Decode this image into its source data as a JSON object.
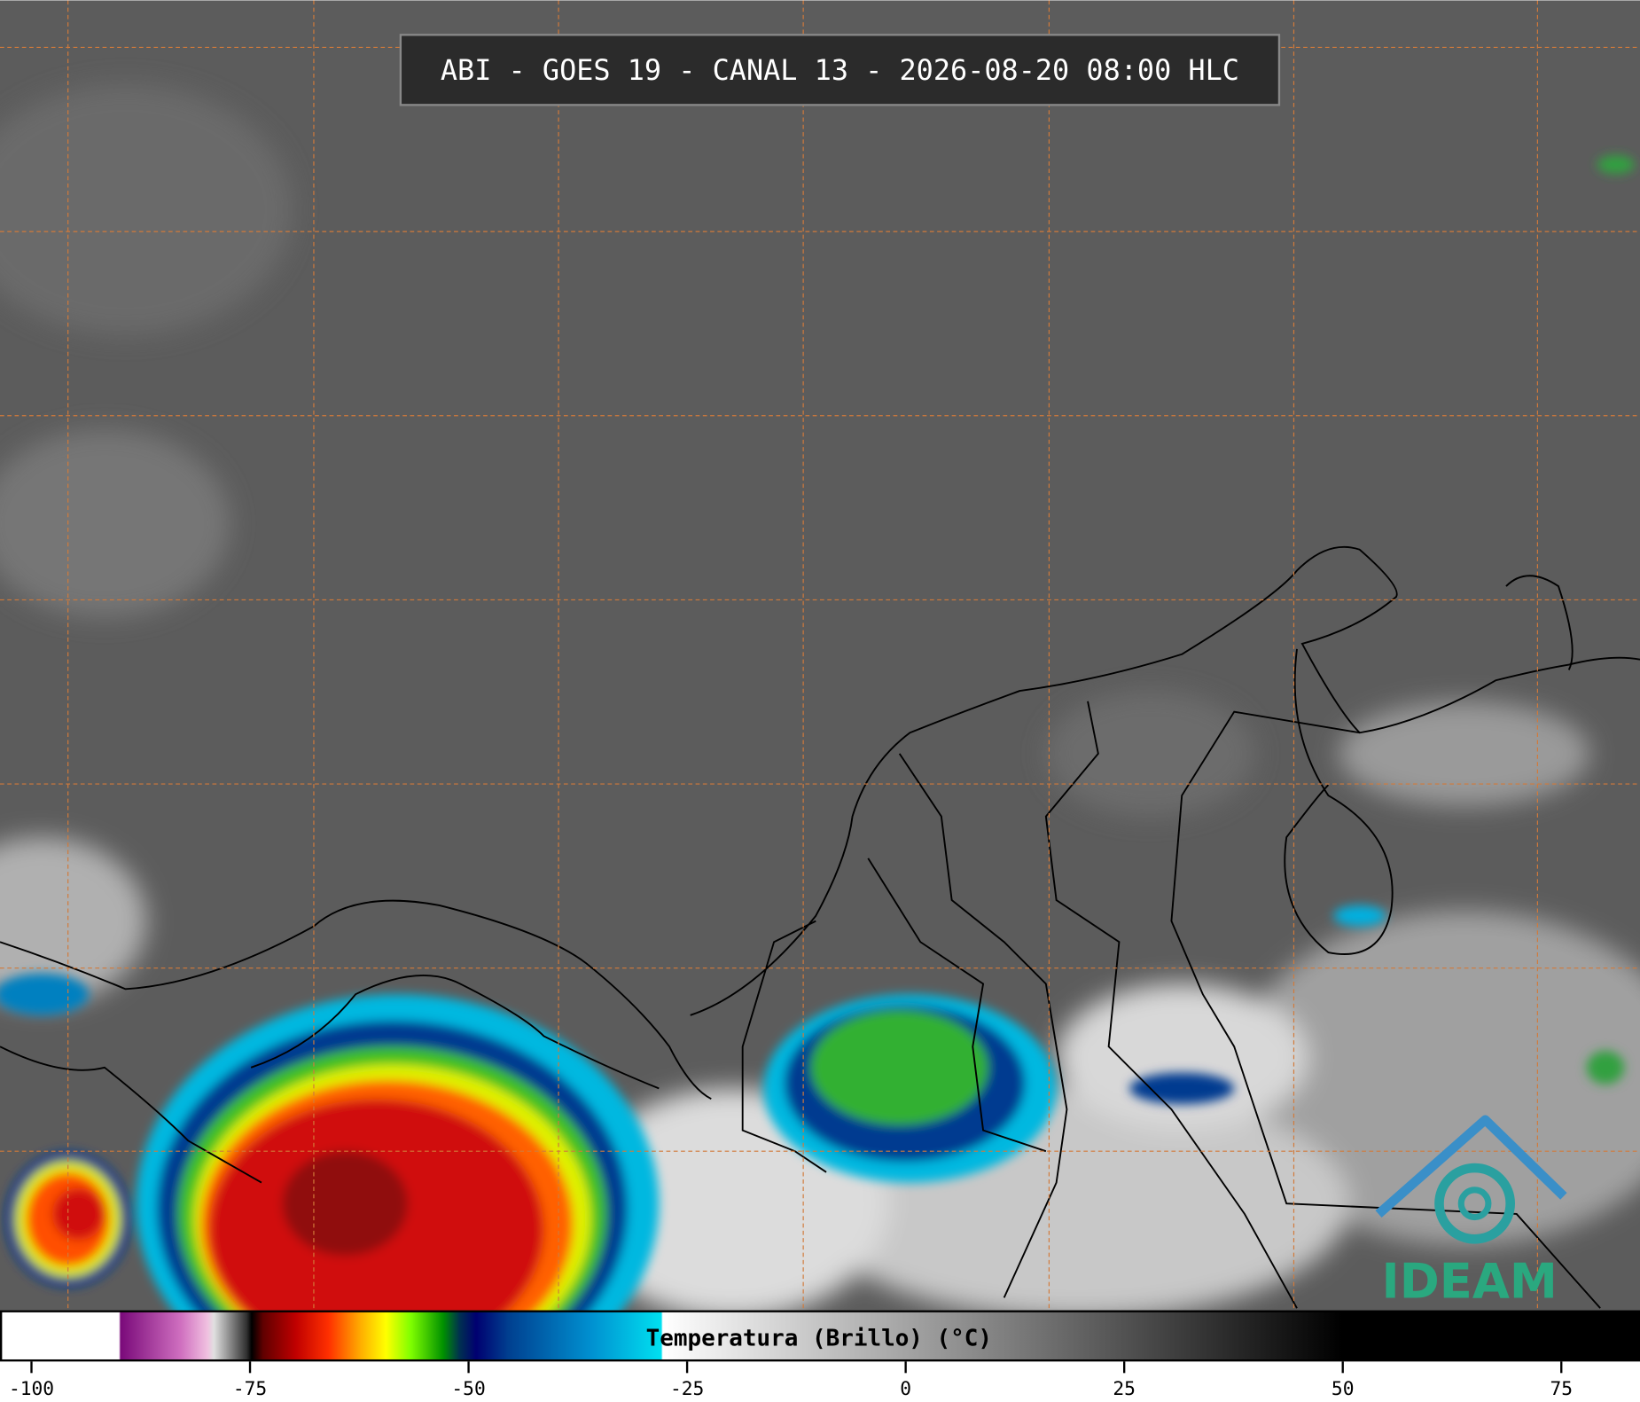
{
  "header": {
    "title": "ABI - GOES 19 - CANAL 13 - 2026-08-20 08:00 HLC"
  },
  "colorbar": {
    "label": "Temperatura (Brillo) (°C)",
    "lim": [
      -103.6,
      84
    ],
    "ticks": [
      -100,
      -75,
      -50,
      -25,
      0,
      25,
      50,
      75
    ]
  },
  "logo": {
    "text": "IDEAM"
  }
}
